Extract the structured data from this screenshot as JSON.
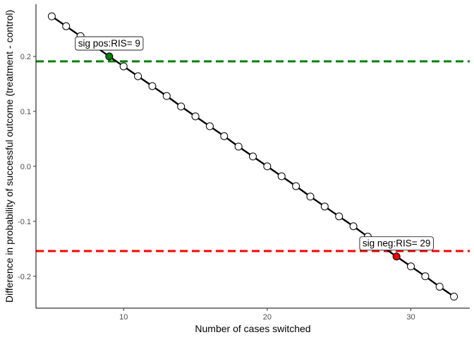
{
  "chart_data": {
    "type": "line",
    "xlabel": "Number of cases switched",
    "ylabel": "Difference in probability of successful outcome (treatment - control)",
    "xlim": [
      3.9,
      34.1
    ],
    "ylim": [
      -0.258,
      0.295
    ],
    "x_ticks": [
      10,
      20,
      30
    ],
    "y_ticks": [
      -0.2,
      -0.1,
      0.0,
      0.1,
      0.2
    ],
    "y_tick_labels": [
      "-0.2",
      "-0.1",
      "0.0",
      "0.1",
      "0.2"
    ],
    "grid": false,
    "legend": "none",
    "series": [
      {
        "x": [
          5,
          6,
          7,
          8,
          9,
          10,
          11,
          12,
          13,
          14,
          15,
          16,
          17,
          18,
          19,
          20,
          21,
          22,
          23,
          24,
          25,
          26,
          27,
          28,
          29,
          30,
          31,
          32,
          33
        ],
        "y": [
          0.273,
          0.255,
          0.237,
          0.219,
          0.2,
          0.182,
          0.164,
          0.146,
          0.128,
          0.109,
          0.091,
          0.073,
          0.055,
          0.036,
          0.018,
          0.0,
          -0.018,
          -0.036,
          -0.055,
          -0.073,
          -0.091,
          -0.109,
          -0.128,
          -0.146,
          -0.164,
          -0.182,
          -0.2,
          -0.219,
          -0.237
        ]
      }
    ],
    "reference_lines": [
      {
        "y": 0.191,
        "color": "#008000",
        "style": "dashed"
      },
      {
        "y": -0.154,
        "color": "#ff0000",
        "style": "dashed"
      }
    ],
    "highlight_points": [
      {
        "x": 9,
        "y": 0.2,
        "color": "#008000",
        "label": "sig pos:RIS= 9"
      },
      {
        "x": 29,
        "y": -0.164,
        "color": "#ff0000",
        "label": "sig neg:RIS= 29"
      }
    ]
  }
}
